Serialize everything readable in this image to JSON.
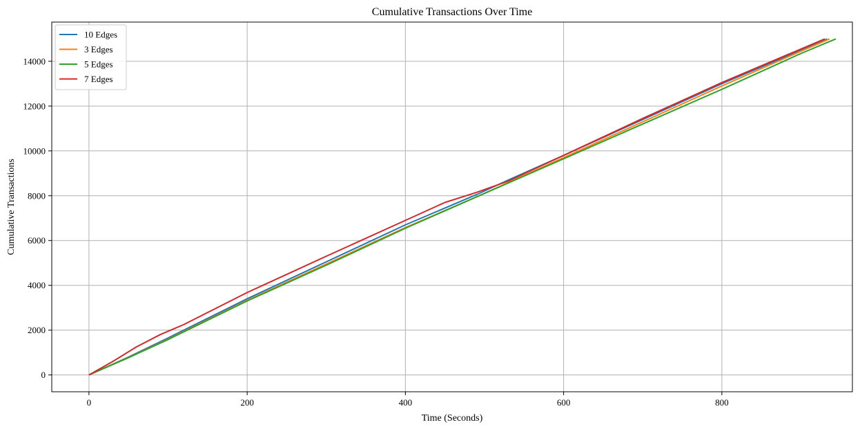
{
  "chart_data": {
    "type": "line",
    "title": "Cumulative Transactions Over Time",
    "xlabel": "Time (Seconds)",
    "ylabel": "Cumulative Transactions",
    "xlim": [
      -47,
      965
    ],
    "ylim": [
      -750,
      15750
    ],
    "xticks": [
      0,
      200,
      400,
      600,
      800
    ],
    "yticks": [
      0,
      2000,
      4000,
      6000,
      8000,
      10000,
      12000,
      14000
    ],
    "grid": true,
    "legend_position": "top-left",
    "series": [
      {
        "name": "10 Edges",
        "color": "#1f77b4",
        "points": [
          [
            0,
            0
          ],
          [
            50,
            800
          ],
          [
            100,
            1650
          ],
          [
            200,
            3400
          ],
          [
            300,
            5050
          ],
          [
            400,
            6700
          ],
          [
            490,
            8050
          ],
          [
            530,
            8700
          ],
          [
            600,
            9800
          ],
          [
            700,
            11400
          ],
          [
            800,
            13000
          ],
          [
            900,
            14500
          ],
          [
            933,
            15000
          ]
        ]
      },
      {
        "name": "3 Edges",
        "color": "#ff7f0e",
        "points": [
          [
            0,
            0
          ],
          [
            50,
            780
          ],
          [
            100,
            1600
          ],
          [
            200,
            3330
          ],
          [
            300,
            4950
          ],
          [
            400,
            6580
          ],
          [
            490,
            7950
          ],
          [
            600,
            9700
          ],
          [
            700,
            11300
          ],
          [
            800,
            12900
          ],
          [
            900,
            14450
          ],
          [
            936,
            15000
          ]
        ]
      },
      {
        "name": "5 Edges",
        "color": "#2ca02c",
        "points": [
          [
            0,
            0
          ],
          [
            50,
            770
          ],
          [
            100,
            1580
          ],
          [
            200,
            3300
          ],
          [
            300,
            4900
          ],
          [
            400,
            6550
          ],
          [
            490,
            7950
          ],
          [
            600,
            9650
          ],
          [
            700,
            11200
          ],
          [
            800,
            12750
          ],
          [
            900,
            14350
          ],
          [
            944,
            15000
          ]
        ]
      },
      {
        "name": "7 Edges",
        "color": "#d62728",
        "points": [
          [
            0,
            0
          ],
          [
            30,
            600
          ],
          [
            60,
            1250
          ],
          [
            90,
            1800
          ],
          [
            120,
            2250
          ],
          [
            200,
            3680
          ],
          [
            300,
            5300
          ],
          [
            400,
            6900
          ],
          [
            450,
            7700
          ],
          [
            490,
            8150
          ],
          [
            530,
            8650
          ],
          [
            600,
            9800
          ],
          [
            700,
            11450
          ],
          [
            800,
            13050
          ],
          [
            900,
            14550
          ],
          [
            930,
            15000
          ]
        ]
      }
    ]
  }
}
